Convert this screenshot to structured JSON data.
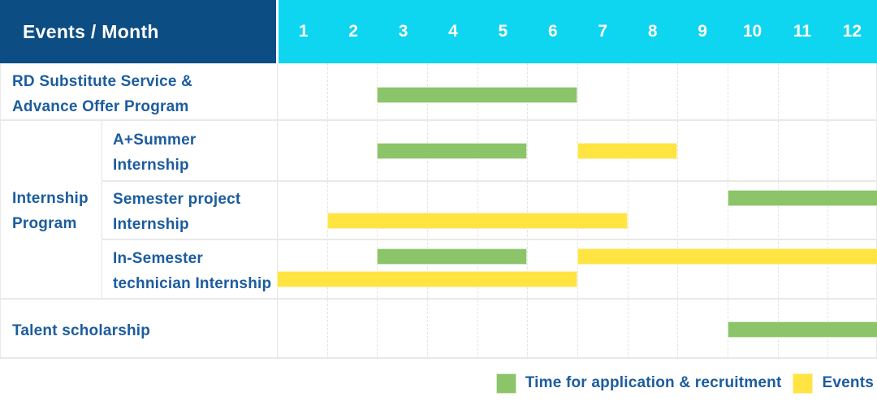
{
  "header": {
    "title": "Events / Month",
    "months": [
      "1",
      "2",
      "3",
      "4",
      "5",
      "6",
      "7",
      "8",
      "9",
      "10",
      "11",
      "12"
    ]
  },
  "colors": {
    "header_bg": "#0C4D83",
    "months_bg": "#0ED5F0",
    "label_text": "#1C5C9E",
    "grid_line": "#E3E3E3",
    "row_line": "#E9E9E9",
    "green": "#8BC469",
    "green_edge": "#D9ECCA",
    "yellow": "#FFE442",
    "yellow_edge": "#FCF2B0"
  },
  "legend": {
    "items": [
      {
        "swatch": "green",
        "label": "Time for application & recruitment"
      },
      {
        "swatch": "yellow",
        "label": "Events"
      }
    ]
  },
  "chart_data": {
    "type": "table",
    "subtype": "gantt-schedule",
    "title": "Events / Month",
    "x_categories": [
      1,
      2,
      3,
      4,
      5,
      6,
      7,
      8,
      9,
      10,
      11,
      12
    ],
    "series_legend": [
      {
        "name": "Time for application & recruitment",
        "color": "green"
      },
      {
        "name": "Events",
        "color": "yellow"
      }
    ],
    "group_label": "Internship Program",
    "group_label_lines": [
      "Internship",
      "Program"
    ],
    "rows": [
      {
        "label": "RD Substitute Service & Advance Offer Program",
        "label_lines": [
          "RD Substitute Service &",
          "Advance Offer Program"
        ],
        "group": null,
        "bars": [
          {
            "series": "Time for application & recruitment",
            "color": "green",
            "start_month": 3,
            "end_month": 6,
            "line": 0
          }
        ]
      },
      {
        "label": "A+Summer Internship",
        "label_lines": [
          "A+Summer",
          "Internship"
        ],
        "group": "Internship Program",
        "bars": [
          {
            "series": "Time for application & recruitment",
            "color": "green",
            "start_month": 3,
            "end_month": 5,
            "line": 0
          },
          {
            "series": "Events",
            "color": "yellow",
            "start_month": 7,
            "end_month": 8,
            "line": 0
          }
        ]
      },
      {
        "label": "Semester project Internship",
        "label_lines": [
          "Semester project",
          "Internship"
        ],
        "group": "Internship Program",
        "bars": [
          {
            "series": "Time for application & recruitment",
            "color": "green",
            "start_month": 10,
            "end_month": 12,
            "line": 0
          },
          {
            "series": "Events",
            "color": "yellow",
            "start_month": 2,
            "end_month": 7,
            "line": 1
          }
        ]
      },
      {
        "label": "In-Semester technician Internship",
        "label_lines": [
          "In-Semester",
          "technician Internship"
        ],
        "group": "Internship Program",
        "bars": [
          {
            "series": "Time for application & recruitment",
            "color": "green",
            "start_month": 3,
            "end_month": 5,
            "line": 0
          },
          {
            "series": "Events",
            "color": "yellow",
            "start_month": 7,
            "end_month": 12,
            "line": 0
          },
          {
            "series": "Events",
            "color": "yellow",
            "start_month": 1,
            "end_month": 6,
            "line": 1
          }
        ]
      },
      {
        "label": "Talent scholarship",
        "label_lines": [
          "Talent scholarship"
        ],
        "group": null,
        "bars": [
          {
            "series": "Time for application & recruitment",
            "color": "green",
            "start_month": 10,
            "end_month": 12,
            "line": 0
          }
        ]
      }
    ]
  }
}
